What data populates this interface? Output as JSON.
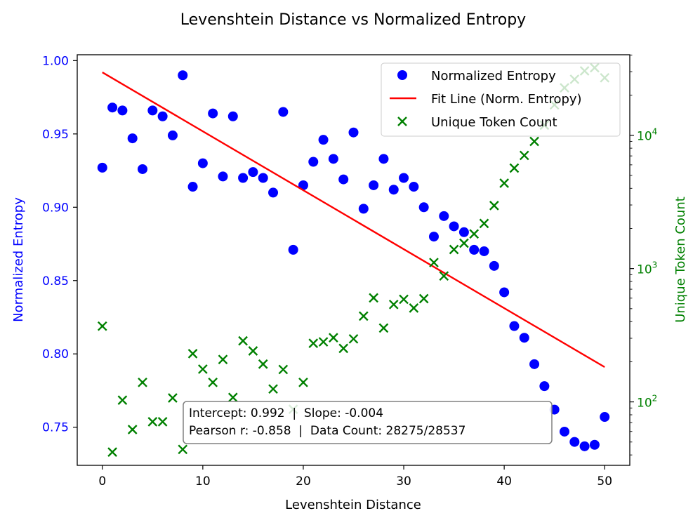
{
  "chart_data": {
    "type": "scatter",
    "title": "Levenshtein Distance vs Normalized Entropy",
    "xlabel": "Levenshtein Distance",
    "ylabel": "Normalized Entropy",
    "y2label": "Unique Token Count",
    "xlim": [
      -2.5,
      52.5
    ],
    "ylim": [
      0.724,
      1.004
    ],
    "y2lim_log10": [
      1.524,
      4.604
    ],
    "y2scale": "log",
    "x_ticks": [
      0,
      10,
      20,
      30,
      40,
      50
    ],
    "y_ticks": [
      0.75,
      0.8,
      0.85,
      0.9,
      0.95,
      1.0
    ],
    "y_tick_labels": [
      "0.75",
      "0.80",
      "0.85",
      "0.90",
      "0.95",
      "1.00"
    ],
    "y2_ticks": [
      {
        "value": 100,
        "label_base": "10",
        "label_exp": "2"
      },
      {
        "value": 1000,
        "label_base": "10",
        "label_exp": "3"
      },
      {
        "value": 10000,
        "label_base": "10",
        "label_exp": "4"
      }
    ],
    "grid": false,
    "legend_placement": "top-right",
    "colors": {
      "entropy": "#0000ff",
      "fit": "#ff0000",
      "tokens": "#008000",
      "left_axis": "#0000ff",
      "right_axis": "#008000"
    },
    "series": [
      {
        "name": "Normalized Entropy",
        "kind": "scatter",
        "axis": "left",
        "x": [
          0,
          1,
          2,
          3,
          4,
          5,
          6,
          7,
          8,
          9,
          10,
          11,
          12,
          13,
          14,
          15,
          16,
          17,
          18,
          19,
          20,
          21,
          22,
          23,
          24,
          25,
          26,
          27,
          28,
          29,
          30,
          31,
          32,
          33,
          34,
          35,
          36,
          37,
          38,
          39,
          40,
          41,
          42,
          43,
          44,
          45,
          46,
          47,
          48,
          49,
          50
        ],
        "y": [
          0.927,
          0.968,
          0.966,
          0.947,
          0.926,
          0.966,
          0.962,
          0.949,
          0.99,
          0.914,
          0.93,
          0.964,
          0.921,
          0.962,
          0.92,
          0.924,
          0.92,
          0.91,
          0.965,
          0.871,
          0.915,
          0.931,
          0.946,
          0.933,
          0.919,
          0.951,
          0.899,
          0.915,
          0.933,
          0.912,
          0.92,
          0.914,
          0.9,
          0.88,
          0.894,
          0.887,
          0.883,
          0.871,
          0.87,
          0.86,
          0.842,
          0.819,
          0.811,
          0.793,
          0.778,
          0.762,
          0.747,
          0.74,
          0.737,
          0.738,
          0.757
        ]
      },
      {
        "name": "Fit Line (Norm. Entropy)",
        "kind": "line",
        "axis": "left",
        "x": [
          0,
          50
        ],
        "y": [
          0.992,
          0.791
        ]
      },
      {
        "name": "Unique Token Count",
        "kind": "scatter",
        "axis": "right",
        "x": [
          0,
          1,
          2,
          3,
          4,
          5,
          6,
          7,
          8,
          9,
          10,
          11,
          12,
          13,
          14,
          15,
          16,
          17,
          18,
          19,
          20,
          21,
          22,
          23,
          24,
          25,
          26,
          27,
          28,
          29,
          30,
          31,
          32,
          33,
          34,
          35,
          36,
          37,
          38,
          39,
          40,
          41,
          42,
          43,
          44,
          45,
          46,
          47,
          48,
          49,
          50
        ],
        "y": [
          370,
          42,
          103,
          62,
          140,
          71,
          71,
          107,
          44,
          230,
          176,
          140,
          208,
          108,
          287,
          241,
          192,
          125,
          175,
          88,
          140,
          275,
          282,
          303,
          252,
          297,
          440,
          603,
          358,
          538,
          588,
          506,
          595,
          1110,
          880,
          1390,
          1550,
          1820,
          2180,
          2970,
          4370,
          5670,
          7060,
          8990,
          11900,
          16900,
          22700,
          26300,
          30400,
          32100,
          27000
        ]
      }
    ],
    "annotation": {
      "line1": "Intercept: 0.992  |  Slope: -0.004",
      "line2": "Pearson r: -0.858  |  Data Count: 28275/28537"
    }
  }
}
